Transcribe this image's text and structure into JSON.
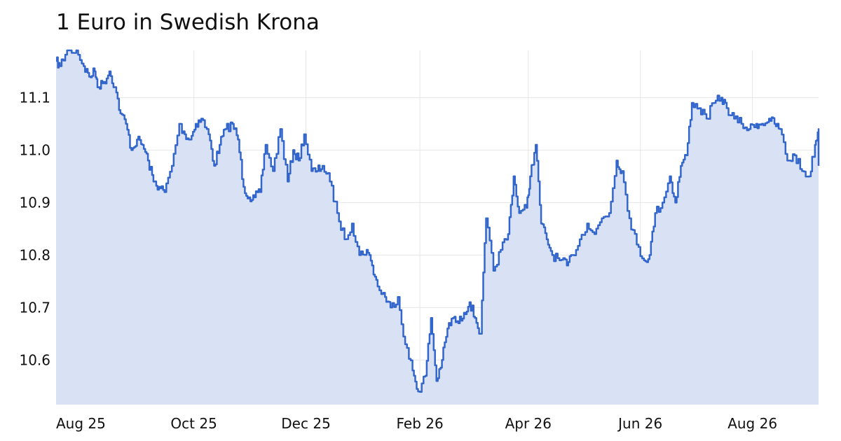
{
  "chart_data": {
    "type": "area",
    "title": "1 Euro in Swedish Krona",
    "xlabel": "",
    "ylabel": "",
    "x_tick_labels": [
      "Aug 25",
      "Oct 25",
      "Dec 25",
      "Feb 26",
      "Apr 26",
      "Jun 26",
      "Aug 26"
    ],
    "y_tick_labels": [
      "11.1",
      "11.0",
      "10.9",
      "10.8",
      "10.7",
      "10.6"
    ],
    "ylim": [
      10.515,
      11.19
    ],
    "grid": true,
    "colors": {
      "line": "#3366cc",
      "fill": "#d9e1f5",
      "grid": "#e6e6e6"
    },
    "series": [
      {
        "x": [
          "2025-07-18",
          "2025-07-20",
          "2025-07-24",
          "2025-07-29",
          "2025-08-02",
          "2025-08-05",
          "2025-08-08",
          "2025-08-10",
          "2025-08-13",
          "2025-08-16",
          "2025-08-19",
          "2025-08-22",
          "2025-08-25",
          "2025-08-28",
          "2025-08-31",
          "2025-09-03",
          "2025-09-06",
          "2025-09-09",
          "2025-09-12",
          "2025-09-15",
          "2025-09-19",
          "2025-09-23",
          "2025-09-26",
          "2025-09-29",
          "2025-10-02",
          "2025-10-05",
          "2025-10-09",
          "2025-10-12",
          "2025-10-15",
          "2025-10-18",
          "2025-10-22",
          "2025-10-25",
          "2025-10-28",
          "2025-10-31",
          "2025-11-03",
          "2025-11-06",
          "2025-11-09",
          "2025-11-13",
          "2025-11-17",
          "2025-11-21",
          "2025-11-24",
          "2025-11-27",
          "2025-11-30",
          "2025-12-04",
          "2025-12-07",
          "2025-12-10",
          "2025-12-14",
          "2025-12-18",
          "2025-12-22",
          "2025-12-26",
          "2025-12-30",
          "2026-01-03",
          "2026-01-06",
          "2026-01-09",
          "2026-01-13",
          "2026-01-16",
          "2026-01-20",
          "2026-01-24",
          "2026-01-28",
          "2026-01-31",
          "2026-02-04",
          "2026-02-07",
          "2026-02-10",
          "2026-02-13",
          "2026-02-16",
          "2026-02-19",
          "2026-02-22",
          "2026-02-25",
          "2026-02-28",
          "2026-03-03",
          "2026-03-06",
          "2026-03-09",
          "2026-03-13",
          "2026-03-17",
          "2026-03-21",
          "2026-03-24",
          "2026-03-27",
          "2026-03-31",
          "2026-04-02",
          "2026-04-05",
          "2026-04-08",
          "2026-04-11",
          "2026-04-14",
          "2026-04-18",
          "2026-04-22",
          "2026-04-25",
          "2026-04-29",
          "2026-05-03",
          "2026-05-07",
          "2026-05-11",
          "2026-05-15",
          "2026-05-19",
          "2026-05-22",
          "2026-05-26",
          "2026-05-30",
          "2026-06-03",
          "2026-06-06",
          "2026-06-09",
          "2026-06-13",
          "2026-06-17",
          "2026-06-20",
          "2026-06-23",
          "2026-06-26",
          "2026-06-29",
          "2026-07-03",
          "2026-07-07",
          "2026-07-11",
          "2026-07-15",
          "2026-07-18",
          "2026-07-22",
          "2026-07-26",
          "2026-07-30",
          "2026-08-03",
          "2026-08-06",
          "2026-08-10",
          "2026-08-13",
          "2026-08-16",
          "2026-08-20",
          "2026-08-24",
          "2026-08-28",
          "2026-09-01",
          "2026-09-04",
          "2026-09-06"
        ],
        "values": [
          11.17,
          11.16,
          11.19,
          11.19,
          11.16,
          11.14,
          11.15,
          11.12,
          11.13,
          11.15,
          11.12,
          11.07,
          11.05,
          11.0,
          11.02,
          11.01,
          10.98,
          10.94,
          10.93,
          10.92,
          10.97,
          11.05,
          11.03,
          11.02,
          11.05,
          11.06,
          11.03,
          10.97,
          11.01,
          11.04,
          11.05,
          11.02,
          10.93,
          10.91,
          10.91,
          10.92,
          11.01,
          10.96,
          11.04,
          10.94,
          11.0,
          10.98,
          11.03,
          10.96,
          10.96,
          10.97,
          10.94,
          10.88,
          10.83,
          10.86,
          10.8,
          10.81,
          10.78,
          10.74,
          10.72,
          10.7,
          10.72,
          10.63,
          10.58,
          10.54,
          10.57,
          10.68,
          10.56,
          10.6,
          10.66,
          10.68,
          10.67,
          10.69,
          10.71,
          10.68,
          10.65,
          10.87,
          10.77,
          10.81,
          10.84,
          10.95,
          10.88,
          10.89,
          10.95,
          11.01,
          10.86,
          10.83,
          10.8,
          10.79,
          10.78,
          10.8,
          10.83,
          10.86,
          10.84,
          10.87,
          10.88,
          10.98,
          10.96,
          10.87,
          10.82,
          10.79,
          10.8,
          10.88,
          10.9,
          10.95,
          10.9,
          10.97,
          10.99,
          11.09,
          11.08,
          11.06,
          11.09,
          11.1,
          11.08,
          11.06,
          11.05,
          11.04,
          11.05,
          11.05,
          11.06,
          11.05,
          11.04,
          10.98,
          10.99,
          10.96,
          10.95,
          11.01,
          11.04
        ]
      }
    ]
  }
}
